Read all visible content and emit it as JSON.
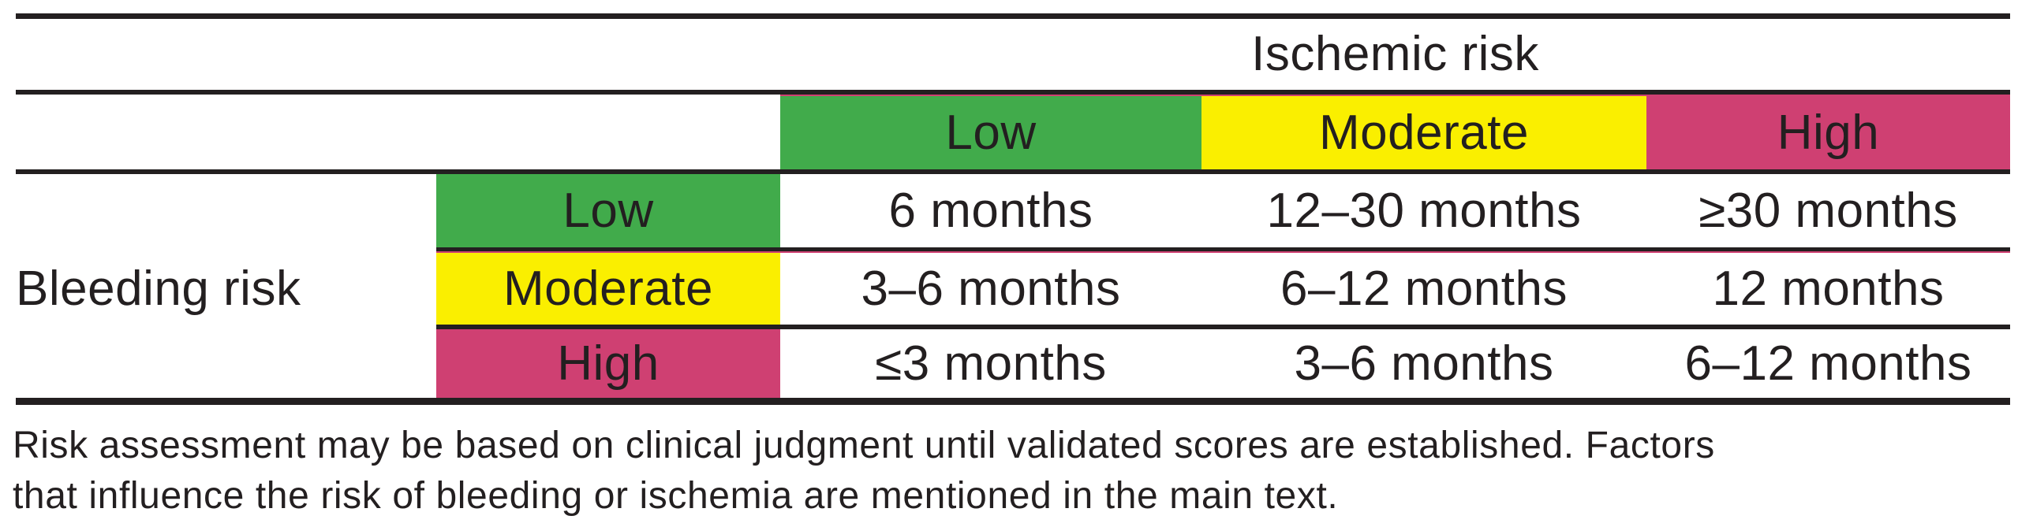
{
  "table": {
    "column_group_title": "Ischemic risk",
    "row_group_title": "Bleeding risk",
    "columns": [
      {
        "label": "Low",
        "color": "#41ab4b"
      },
      {
        "label": "Moderate",
        "color": "#faef00"
      },
      {
        "label": "High",
        "color": "#cf4072"
      }
    ],
    "rows": [
      {
        "label": "Low",
        "color": "#41ab4b",
        "values": [
          "6 months",
          "12–30 months",
          "≥30 months"
        ]
      },
      {
        "label": "Moderate",
        "color": "#faef00",
        "values": [
          "3–6 months",
          "6–12 months",
          "12 months"
        ]
      },
      {
        "label": "High",
        "color": "#cf4072",
        "values": [
          "≤3 months",
          "3–6 months",
          "6–12 months"
        ]
      }
    ]
  },
  "footnote_lines": [
    "Risk assessment may be based on clinical judgment until validated scores are established. Factors",
    "that influence the risk of bleeding or ischemia are mentioned in the main text."
  ],
  "colors": {
    "low": "#41ab4b",
    "moderate": "#faef00",
    "high": "#cf4072",
    "rule": "#231f20"
  }
}
